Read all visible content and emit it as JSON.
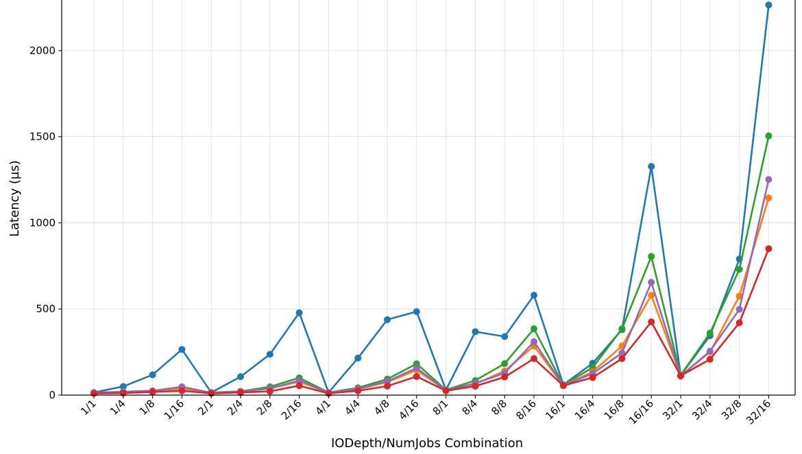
{
  "chart_data": {
    "type": "line",
    "title": "",
    "xlabel": "IODepth/NumJobs Combination",
    "ylabel": "Latency (µs)",
    "ylim": [
      0,
      2270
    ],
    "yticks": [
      0,
      500,
      1000,
      1500,
      2000
    ],
    "grid": true,
    "legend": "none",
    "categories": [
      "1/1",
      "1/4",
      "1/8",
      "1/16",
      "2/1",
      "2/4",
      "2/8",
      "2/16",
      "4/1",
      "4/4",
      "4/8",
      "4/16",
      "8/1",
      "8/4",
      "8/8",
      "8/16",
      "16/1",
      "16/4",
      "16/8",
      "16/16",
      "32/1",
      "32/4",
      "32/8",
      "32/16"
    ],
    "series": [
      {
        "color": "#1f77b4",
        "values": [
          15,
          50,
          118,
          265,
          15,
          107,
          237,
          478,
          15,
          215,
          438,
          485,
          30,
          368,
          340,
          580,
          60,
          185,
          380,
          1328,
          115,
          345,
          790,
          2265
        ]
      },
      {
        "color": "#2ca02c",
        "values": [
          13,
          20,
          25,
          40,
          15,
          22,
          48,
          100,
          15,
          42,
          93,
          182,
          30,
          85,
          183,
          385,
          58,
          160,
          385,
          805,
          115,
          360,
          730,
          1505
        ]
      },
      {
        "color": "#ff7f0e",
        "values": [
          12,
          18,
          23,
          38,
          14,
          20,
          38,
          78,
          14,
          35,
          75,
          145,
          28,
          65,
          140,
          285,
          56,
          135,
          285,
          580,
          112,
          250,
          575,
          1145
        ]
      },
      {
        "color": "#9467bd",
        "values": [
          14,
          20,
          25,
          48,
          14,
          22,
          38,
          85,
          14,
          36,
          80,
          158,
          28,
          68,
          128,
          310,
          56,
          125,
          245,
          655,
          110,
          255,
          498,
          1252
        ]
      },
      {
        "color": "#d62728",
        "values": [
          10,
          12,
          18,
          25,
          10,
          15,
          22,
          55,
          10,
          25,
          52,
          108,
          25,
          52,
          105,
          212,
          55,
          102,
          212,
          425,
          112,
          208,
          420,
          850
        ]
      }
    ]
  }
}
